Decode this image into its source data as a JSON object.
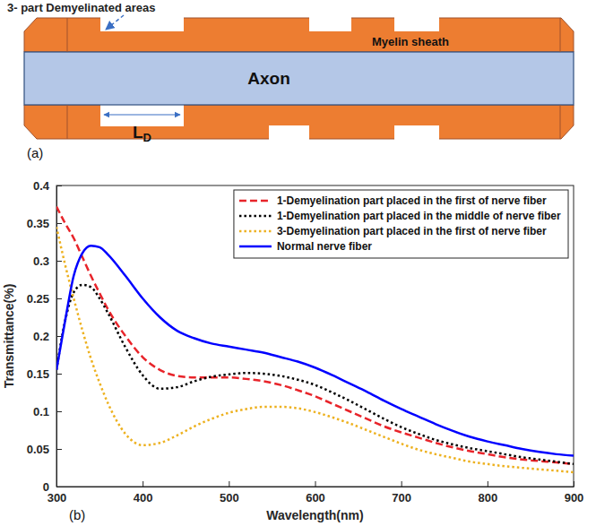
{
  "diagram": {
    "title": "3- part Demyelinated areas",
    "myelin_label": "Myelin sheath",
    "axon_label": "Axon",
    "length_label": "L",
    "length_subscript": "D",
    "panel": "(a)"
  },
  "chart_data": {
    "type": "line",
    "panel": "(b)",
    "x_label": "Wavelength(nm)",
    "y_label": "Transmittance(%)",
    "xlim": [
      300,
      900
    ],
    "xticks": [
      300,
      400,
      500,
      600,
      700,
      800,
      900
    ],
    "ylim": [
      0,
      0.4
    ],
    "yticks": [
      0,
      0.05,
      0.1,
      0.15,
      0.2,
      0.25,
      0.3,
      0.35,
      0.4
    ],
    "grid": false,
    "legend": "upper right",
    "x": [
      300,
      310,
      320,
      330,
      340,
      350,
      360,
      380,
      400,
      420,
      440,
      460,
      480,
      500,
      520,
      540,
      560,
      580,
      600,
      620,
      640,
      660,
      680,
      700,
      720,
      740,
      760,
      780,
      800,
      820,
      840,
      860,
      880,
      900
    ],
    "series": [
      {
        "name": "1-Demyelination part placed in the first of nerve fiber",
        "color": "#e8242a",
        "line_style": "dashed",
        "values": [
          0.372,
          0.35,
          0.33,
          0.305,
          0.28,
          0.257,
          0.235,
          0.2,
          0.172,
          0.155,
          0.147,
          0.145,
          0.145,
          0.145,
          0.143,
          0.14,
          0.135,
          0.128,
          0.12,
          0.11,
          0.1,
          0.09,
          0.08,
          0.072,
          0.065,
          0.058,
          0.052,
          0.047,
          0.043,
          0.039,
          0.036,
          0.034,
          0.032,
          0.03
        ]
      },
      {
        "name": "1-Demyelination part placed in the middle of nerve fiber",
        "color": "#000000",
        "line_style": "dotted",
        "values": [
          0.155,
          0.22,
          0.258,
          0.268,
          0.265,
          0.25,
          0.23,
          0.185,
          0.148,
          0.13,
          0.132,
          0.14,
          0.146,
          0.149,
          0.151,
          0.15,
          0.147,
          0.142,
          0.135,
          0.125,
          0.114,
          0.102,
          0.09,
          0.079,
          0.07,
          0.062,
          0.056,
          0.051,
          0.047,
          0.043,
          0.039,
          0.036,
          0.033,
          0.03
        ]
      },
      {
        "name": "3-Demyelination part placed in the first of nerve fiber",
        "color": "#edb120",
        "line_style": "dotted",
        "values": [
          0.345,
          0.295,
          0.25,
          0.208,
          0.17,
          0.138,
          0.11,
          0.07,
          0.055,
          0.058,
          0.068,
          0.08,
          0.09,
          0.098,
          0.103,
          0.106,
          0.106,
          0.104,
          0.099,
          0.092,
          0.084,
          0.075,
          0.066,
          0.057,
          0.049,
          0.043,
          0.038,
          0.033,
          0.03,
          0.027,
          0.025,
          0.023,
          0.021,
          0.019
        ]
      },
      {
        "name": "Normal nerve fiber",
        "color": "#0000ff",
        "line_style": "solid",
        "values": [
          0.155,
          0.22,
          0.28,
          0.31,
          0.32,
          0.318,
          0.308,
          0.28,
          0.25,
          0.225,
          0.207,
          0.197,
          0.19,
          0.186,
          0.182,
          0.178,
          0.172,
          0.166,
          0.158,
          0.148,
          0.137,
          0.126,
          0.114,
          0.103,
          0.093,
          0.083,
          0.074,
          0.066,
          0.06,
          0.055,
          0.05,
          0.046,
          0.043,
          0.041
        ]
      }
    ]
  }
}
